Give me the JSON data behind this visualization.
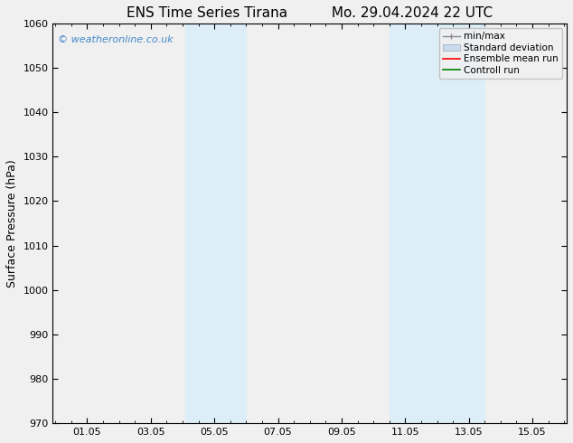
{
  "title_left": "ENS Time Series Tirana",
  "title_right": "Mo. 29.04.2024 22 UTC",
  "ylabel": "Surface Pressure (hPa)",
  "ylim": [
    970,
    1060
  ],
  "yticks": [
    970,
    980,
    990,
    1000,
    1010,
    1020,
    1030,
    1040,
    1050,
    1060
  ],
  "xtick_labels": [
    "01.05",
    "03.05",
    "05.05",
    "07.05",
    "09.05",
    "11.05",
    "13.05",
    "15.05"
  ],
  "xtick_day_offsets": [
    1.0,
    3.0,
    5.0,
    7.0,
    9.0,
    11.0,
    13.0,
    15.0
  ],
  "xlim_day_offsets": [
    -0.08,
    16.08
  ],
  "shaded_bands": [
    {
      "x_start": 4.08,
      "x_end": 6.0
    },
    {
      "x_start": 10.5,
      "x_end": 13.5
    }
  ],
  "shaded_color": "#ddeef8",
  "background_color": "#f0f0f0",
  "plot_bg_color": "#f0f0f0",
  "watermark_text": "© weatheronline.co.uk",
  "watermark_color": "#4488cc",
  "legend_entries": [
    {
      "label": "min/max",
      "color": "#aaaaaa",
      "lw": 1.2
    },
    {
      "label": "Standard deviation",
      "color": "#c8dced",
      "lw": 8
    },
    {
      "label": "Ensemble mean run",
      "color": "red",
      "lw": 1.2
    },
    {
      "label": "Controll run",
      "color": "green",
      "lw": 1.2
    }
  ],
  "title_fontsize": 11,
  "axis_label_fontsize": 9,
  "tick_fontsize": 8,
  "legend_fontsize": 7.5,
  "watermark_fontsize": 8
}
